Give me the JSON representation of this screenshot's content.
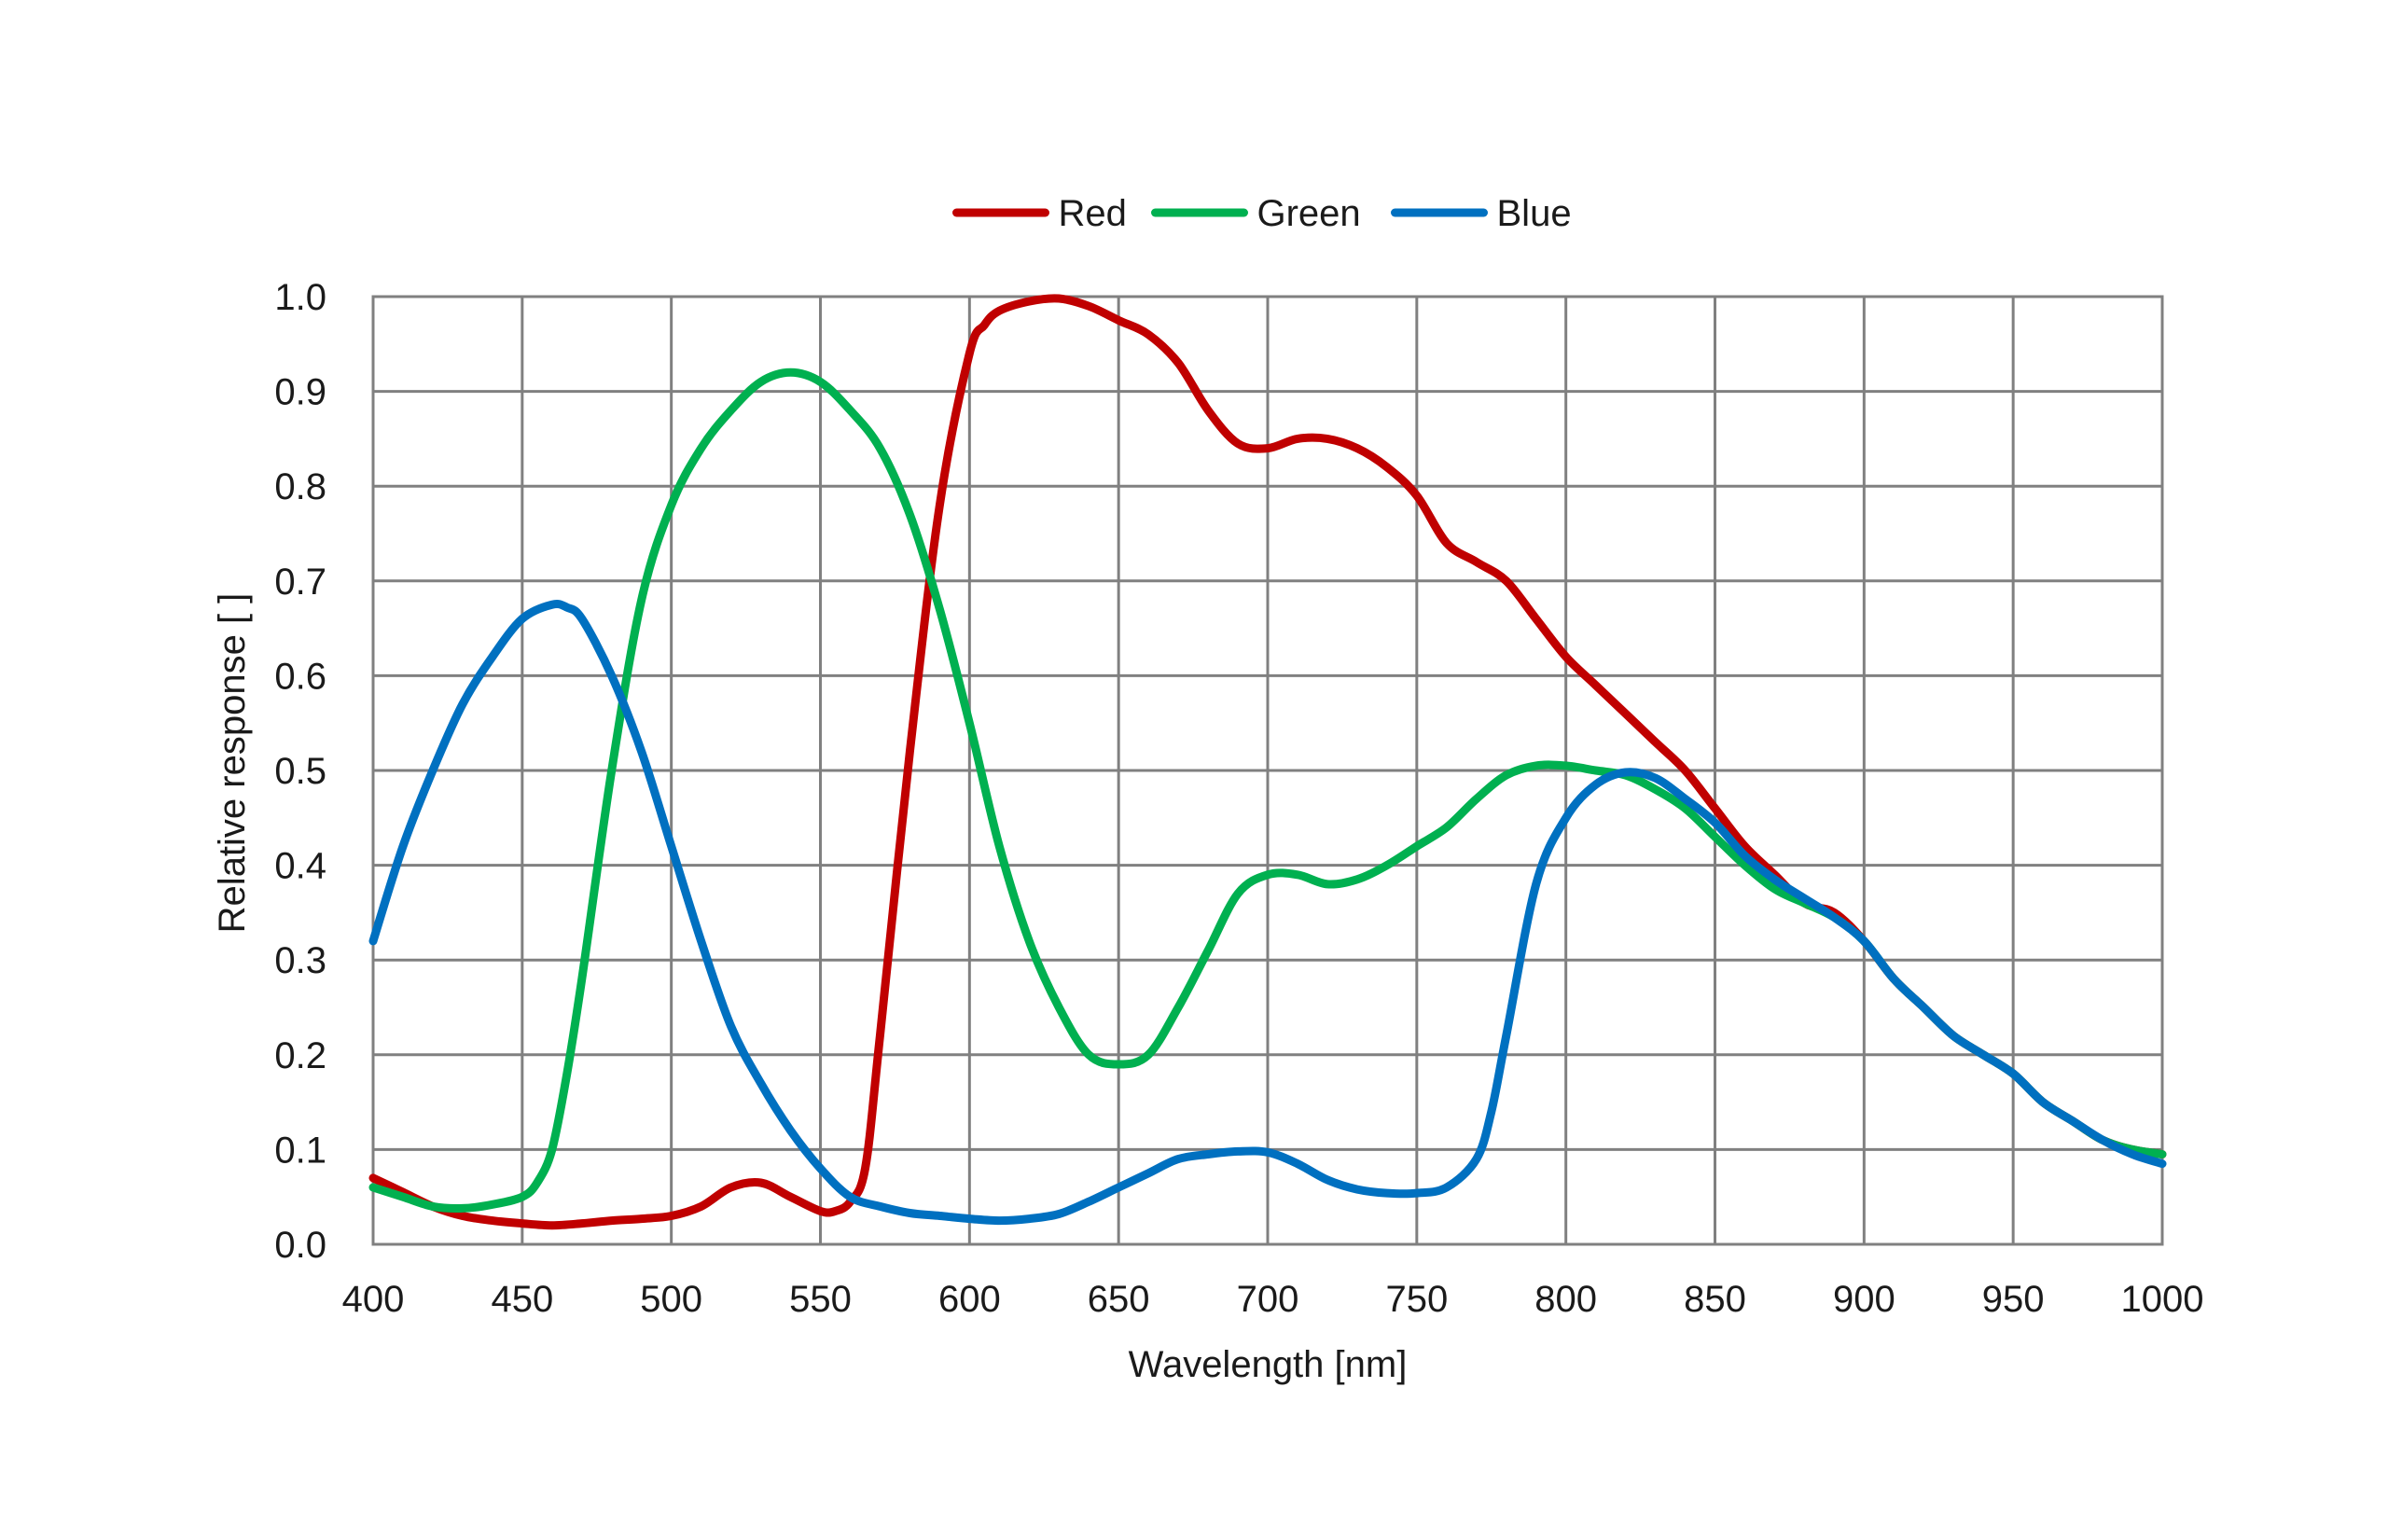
{
  "chart_data": {
    "type": "line",
    "title": "",
    "xlabel": "Wavelength [nm]",
    "ylabel": "Relative response [ ]",
    "xlim": [
      400,
      1000
    ],
    "ylim": [
      0.0,
      1.0
    ],
    "x_ticks": [
      "400",
      "450",
      "500",
      "550",
      "600",
      "650",
      "700",
      "750",
      "800",
      "850",
      "900",
      "950",
      "1000"
    ],
    "y_ticks": [
      "0.0",
      "0.1",
      "0.2",
      "0.3",
      "0.4",
      "0.5",
      "0.6",
      "0.7",
      "0.8",
      "0.9",
      "1.0"
    ],
    "grid": true,
    "legend_position": "top-center",
    "series": [
      {
        "name": "Red",
        "color": "#c00000",
        "x": [
          400,
          410,
          420,
          430,
          440,
          450,
          460,
          470,
          480,
          490,
          500,
          510,
          520,
          530,
          540,
          550,
          555,
          560,
          565,
          570,
          580,
          590,
          600,
          605,
          610,
          620,
          630,
          640,
          650,
          660,
          670,
          680,
          690,
          700,
          710,
          720,
          730,
          740,
          750,
          760,
          770,
          780,
          790,
          800,
          810,
          820,
          830,
          840,
          850,
          860,
          870,
          880,
          890,
          900,
          910,
          920,
          930,
          940,
          950,
          960,
          970,
          980,
          990,
          1000
        ],
        "y": [
          0.07,
          0.055,
          0.04,
          0.03,
          0.025,
          0.022,
          0.02,
          0.022,
          0.025,
          0.027,
          0.03,
          0.04,
          0.06,
          0.065,
          0.05,
          0.035,
          0.035,
          0.045,
          0.08,
          0.22,
          0.52,
          0.78,
          0.94,
          0.97,
          0.985,
          0.995,
          0.998,
          0.99,
          0.975,
          0.96,
          0.93,
          0.88,
          0.845,
          0.84,
          0.85,
          0.85,
          0.84,
          0.82,
          0.79,
          0.74,
          0.72,
          0.7,
          0.66,
          0.62,
          0.59,
          0.56,
          0.53,
          0.5,
          0.46,
          0.42,
          0.39,
          0.36,
          0.35,
          0.32,
          0.28,
          0.25,
          0.22,
          0.2,
          0.18,
          0.15,
          0.13,
          0.11,
          0.1,
          0.095
        ]
      },
      {
        "name": "Green",
        "color": "#00b050",
        "x": [
          400,
          410,
          420,
          430,
          440,
          450,
          455,
          460,
          465,
          470,
          480,
          490,
          500,
          510,
          520,
          530,
          540,
          550,
          560,
          570,
          580,
          590,
          600,
          610,
          620,
          630,
          640,
          650,
          660,
          670,
          680,
          690,
          700,
          710,
          720,
          730,
          740,
          750,
          760,
          770,
          780,
          790,
          800,
          810,
          820,
          830,
          840,
          850,
          860,
          870,
          880,
          890,
          900,
          910,
          920,
          930,
          940,
          950,
          960,
          970,
          980,
          990,
          1000
        ],
        "y": [
          0.06,
          0.05,
          0.04,
          0.038,
          0.042,
          0.05,
          0.065,
          0.1,
          0.18,
          0.28,
          0.5,
          0.68,
          0.78,
          0.84,
          0.88,
          0.91,
          0.92,
          0.91,
          0.88,
          0.84,
          0.77,
          0.67,
          0.55,
          0.42,
          0.32,
          0.25,
          0.2,
          0.19,
          0.2,
          0.25,
          0.31,
          0.37,
          0.39,
          0.39,
          0.38,
          0.385,
          0.4,
          0.42,
          0.44,
          0.47,
          0.495,
          0.505,
          0.505,
          0.5,
          0.495,
          0.48,
          0.46,
          0.43,
          0.4,
          0.375,
          0.36,
          0.345,
          0.32,
          0.28,
          0.25,
          0.22,
          0.2,
          0.18,
          0.15,
          0.13,
          0.11,
          0.1,
          0.095
        ]
      },
      {
        "name": "Blue",
        "color": "#0070c0",
        "x": [
          400,
          410,
          420,
          430,
          440,
          450,
          460,
          465,
          470,
          480,
          490,
          500,
          510,
          520,
          530,
          540,
          550,
          560,
          570,
          580,
          590,
          600,
          610,
          620,
          630,
          640,
          650,
          660,
          670,
          680,
          690,
          700,
          710,
          720,
          730,
          740,
          750,
          760,
          770,
          775,
          780,
          790,
          800,
          810,
          820,
          830,
          840,
          850,
          860,
          870,
          880,
          890,
          900,
          910,
          920,
          930,
          940,
          950,
          960,
          970,
          980,
          990,
          1000
        ],
        "y": [
          0.32,
          0.42,
          0.5,
          0.57,
          0.62,
          0.66,
          0.675,
          0.672,
          0.66,
          0.6,
          0.52,
          0.42,
          0.32,
          0.23,
          0.17,
          0.12,
          0.08,
          0.05,
          0.04,
          0.033,
          0.03,
          0.027,
          0.025,
          0.027,
          0.032,
          0.045,
          0.06,
          0.075,
          0.09,
          0.095,
          0.098,
          0.097,
          0.085,
          0.068,
          0.058,
          0.054,
          0.054,
          0.06,
          0.09,
          0.14,
          0.22,
          0.38,
          0.45,
          0.485,
          0.498,
          0.492,
          0.47,
          0.445,
          0.41,
          0.385,
          0.365,
          0.345,
          0.32,
          0.28,
          0.25,
          0.22,
          0.2,
          0.18,
          0.15,
          0.13,
          0.11,
          0.095,
          0.085
        ]
      }
    ]
  }
}
